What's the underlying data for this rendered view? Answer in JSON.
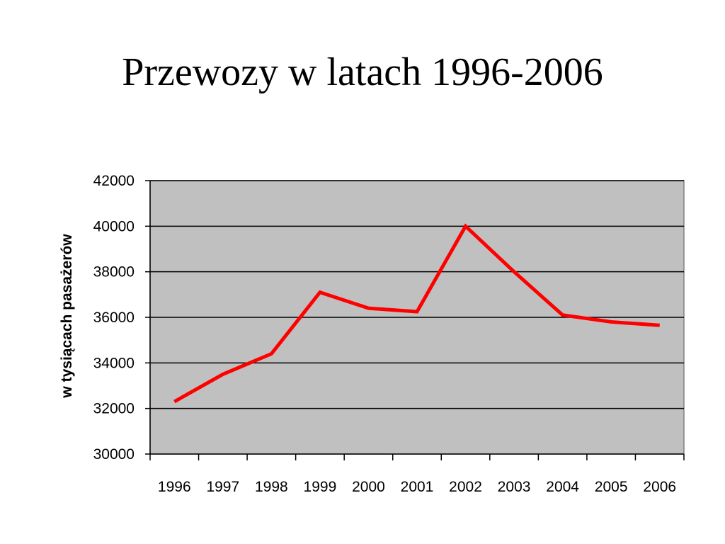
{
  "title": "Przewozy w latach 1996-2006",
  "chart_data": {
    "type": "line",
    "title": "Przewozy w latach 1996-2006",
    "xlabel": "",
    "ylabel": "w tysiącach pasażerów",
    "categories": [
      "1996",
      "1997",
      "1998",
      "1999",
      "2000",
      "2001",
      "2002",
      "2003",
      "2004",
      "2005",
      "2006"
    ],
    "series": [
      {
        "values": [
          32300,
          33500,
          34400,
          37100,
          36400,
          36250,
          40000,
          38000,
          36100,
          35800,
          35650
        ],
        "color": "#ff0000"
      }
    ],
    "ylim": [
      30000,
      42000
    ],
    "yticks": [
      30000,
      32000,
      34000,
      36000,
      38000,
      40000,
      42000
    ],
    "grid": true,
    "plot_background": "#c0c0c0",
    "legend": "none"
  }
}
